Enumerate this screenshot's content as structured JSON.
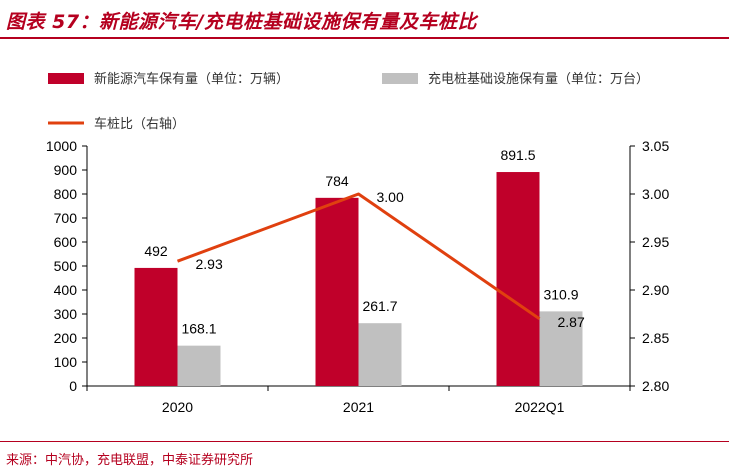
{
  "figure": {
    "title": "图表 57：新能源汽车/充电桩基础设施保有量及车桩比",
    "source": "来源：中汽协，充电联盟，中泰证券研究所"
  },
  "chart_data": {
    "type": "bar",
    "categories": [
      "2020",
      "2021",
      "2022Q1"
    ],
    "series": [
      {
        "name": "新能源汽车保有量（单位：万辆）",
        "kind": "bar",
        "axis": "left",
        "color": "#c0002a",
        "values": [
          492,
          784,
          891.5
        ],
        "labels": [
          "492",
          "784",
          "891.5"
        ]
      },
      {
        "name": "充电桩基础设施保有量（单位：万台）",
        "kind": "bar",
        "axis": "left",
        "color": "#c0c0c0",
        "values": [
          168.1,
          261.7,
          310.9
        ],
        "labels": [
          "168.1",
          "261.7",
          "310.9"
        ]
      },
      {
        "name": "车桩比（右轴）",
        "kind": "line",
        "axis": "right",
        "color": "#e0400f",
        "values": [
          2.93,
          3.0,
          2.87
        ],
        "labels": [
          "2.93",
          "3.00",
          "2.87"
        ]
      }
    ],
    "y_left": {
      "min": 0,
      "max": 1000,
      "ticks": [
        "0",
        "100",
        "200",
        "300",
        "400",
        "500",
        "600",
        "700",
        "800",
        "900",
        "1000"
      ]
    },
    "y_right": {
      "min": 2.8,
      "max": 3.05,
      "ticks": [
        "2.80",
        "2.85",
        "2.90",
        "2.95",
        "3.00",
        "3.05"
      ]
    },
    "grid": false,
    "legend_position": "top"
  }
}
